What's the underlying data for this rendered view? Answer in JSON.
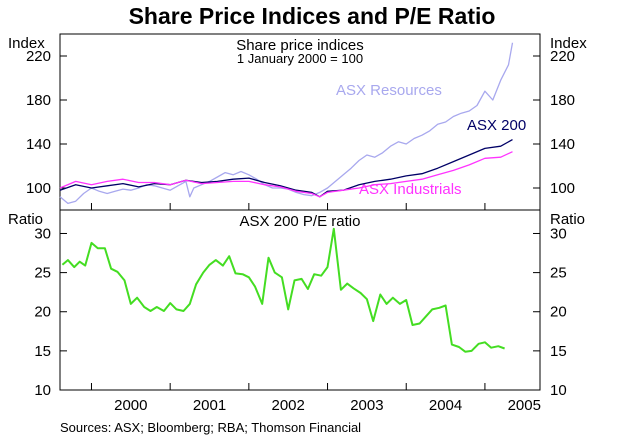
{
  "chart_data": [
    {
      "type": "line",
      "title": "Share Price Indices and P/E Ratio",
      "panel_title": "Share price indices",
      "panel_subtitle": "1 January 2000 = 100",
      "ylabel_left": "Index",
      "ylabel_right": "Index",
      "ylim": [
        80,
        240
      ],
      "yticks": [
        100,
        140,
        180,
        220
      ],
      "xlim": [
        1999.6,
        2005.7
      ],
      "series": [
        {
          "name": "ASX Resources",
          "color": "#a8a8ee",
          "x": [
            1999.6,
            1999.7,
            1999.8,
            1999.9,
            2000.0,
            2000.1,
            2000.2,
            2000.3,
            2000.4,
            2000.5,
            2000.6,
            2000.7,
            2000.8,
            2000.9,
            2001.0,
            2001.1,
            2001.2,
            2001.25,
            2001.3,
            2001.4,
            2001.5,
            2001.6,
            2001.7,
            2001.8,
            2001.9,
            2002.0,
            2002.1,
            2002.2,
            2002.3,
            2002.4,
            2002.5,
            2002.6,
            2002.7,
            2002.8,
            2002.9,
            2003.0,
            2003.1,
            2003.2,
            2003.3,
            2003.4,
            2003.5,
            2003.6,
            2003.7,
            2003.8,
            2003.9,
            2004.0,
            2004.1,
            2004.2,
            2004.3,
            2004.4,
            2004.5,
            2004.6,
            2004.7,
            2004.8,
            2004.9,
            2005.0,
            2005.1,
            2005.2,
            2005.3,
            2005.35
          ],
          "values": [
            92,
            86,
            88,
            95,
            100,
            97,
            95,
            97,
            99,
            98,
            100,
            103,
            102,
            100,
            98,
            102,
            106,
            92,
            100,
            103,
            106,
            110,
            114,
            112,
            115,
            112,
            108,
            103,
            100,
            100,
            99,
            96,
            94,
            93,
            96,
            100,
            106,
            112,
            118,
            125,
            130,
            128,
            132,
            138,
            142,
            140,
            145,
            148,
            152,
            158,
            160,
            165,
            168,
            170,
            175,
            188,
            180,
            198,
            212,
            232
          ]
        },
        {
          "name": "ASX 200",
          "color": "#000066",
          "x": [
            1999.6,
            1999.8,
            2000.0,
            2000.2,
            2000.4,
            2000.6,
            2000.8,
            2001.0,
            2001.2,
            2001.4,
            2001.6,
            2001.8,
            2002.0,
            2002.2,
            2002.4,
            2002.6,
            2002.8,
            2002.9,
            2003.0,
            2003.2,
            2003.4,
            2003.6,
            2003.8,
            2004.0,
            2004.2,
            2004.4,
            2004.6,
            2004.8,
            2005.0,
            2005.2,
            2005.35
          ],
          "values": [
            98,
            103,
            100,
            102,
            104,
            101,
            104,
            103,
            107,
            105,
            106,
            108,
            109,
            105,
            102,
            98,
            96,
            92,
            97,
            98,
            103,
            106,
            108,
            111,
            113,
            118,
            124,
            130,
            136,
            138,
            144
          ]
        },
        {
          "name": "ASX Industrials",
          "color": "#ff33ff",
          "x": [
            1999.6,
            1999.8,
            2000.0,
            2000.2,
            2000.4,
            2000.6,
            2000.8,
            2001.0,
            2001.2,
            2001.4,
            2001.6,
            2001.8,
            2002.0,
            2002.2,
            2002.4,
            2002.6,
            2002.8,
            2002.9,
            2003.0,
            2003.2,
            2003.4,
            2003.6,
            2003.8,
            2004.0,
            2004.2,
            2004.4,
            2004.6,
            2004.8,
            2005.0,
            2005.2,
            2005.35
          ],
          "values": [
            100,
            106,
            103,
            106,
            108,
            105,
            105,
            103,
            107,
            104,
            105,
            106,
            106,
            103,
            101,
            97,
            95,
            92,
            96,
            98,
            100,
            103,
            104,
            106,
            108,
            112,
            116,
            121,
            127,
            128,
            133
          ]
        }
      ],
      "annotations": [
        "ASX Resources",
        "ASX 200",
        "ASX Industrials"
      ]
    },
    {
      "type": "line",
      "panel_title": "ASX 200 P/E ratio",
      "ylabel_left": "Ratio",
      "ylabel_right": "Ratio",
      "ylim": [
        10,
        33
      ],
      "yticks": [
        10,
        15,
        20,
        25,
        30
      ],
      "xlim": [
        1999.6,
        2005.7
      ],
      "xlabel": "",
      "categories": [
        "2000",
        "2001",
        "2002",
        "2003",
        "2004",
        "2005"
      ],
      "series": [
        {
          "name": "ASX 200 P/E ratio",
          "color": "#44dd22",
          "x": [
            1999.63,
            1999.7,
            1999.78,
            1999.85,
            1999.92,
            2000.0,
            2000.08,
            2000.17,
            2000.25,
            2000.33,
            2000.42,
            2000.5,
            2000.58,
            2000.67,
            2000.75,
            2000.83,
            2000.92,
            2001.0,
            2001.08,
            2001.17,
            2001.25,
            2001.33,
            2001.42,
            2001.5,
            2001.58,
            2001.67,
            2001.75,
            2001.83,
            2001.92,
            2002.0,
            2002.08,
            2002.17,
            2002.25,
            2002.33,
            2002.42,
            2002.5,
            2002.58,
            2002.67,
            2002.75,
            2002.83,
            2002.92,
            2003.0,
            2003.08,
            2003.17,
            2003.25,
            2003.33,
            2003.42,
            2003.5,
            2003.58,
            2003.67,
            2003.75,
            2003.83,
            2003.92,
            2004.0,
            2004.08,
            2004.17,
            2004.25,
            2004.33,
            2004.42,
            2004.5,
            2004.58,
            2004.67,
            2004.75,
            2004.83,
            2004.92,
            2005.0,
            2005.08,
            2005.17,
            2005.25
          ],
          "values": [
            26,
            26.6,
            25.7,
            26.4,
            25.9,
            28.8,
            28.1,
            28.1,
            25.5,
            25.1,
            24.0,
            21.0,
            21.8,
            20.6,
            20.1,
            20.6,
            20.1,
            21.1,
            20.3,
            20.1,
            21.0,
            23.5,
            25.0,
            26.0,
            26.6,
            25.9,
            27.1,
            24.9,
            24.8,
            24.4,
            23.2,
            21.0,
            26.9,
            25.0,
            24.4,
            20.3,
            24.0,
            24.2,
            22.9,
            24.8,
            24.6,
            25.7,
            30.6,
            22.8,
            23.6,
            23.0,
            22.4,
            21.6,
            18.8,
            22.2,
            21.0,
            21.8,
            21.0,
            21.5,
            18.3,
            18.5,
            19.4,
            20.3,
            20.5,
            20.8,
            15.8,
            15.5,
            14.9,
            15.0,
            15.9,
            16.1,
            15.4,
            15.6,
            15.3
          ]
        }
      ]
    }
  ],
  "source": "Sources: ASX; Bloomberg; RBA; Thomson Financial"
}
